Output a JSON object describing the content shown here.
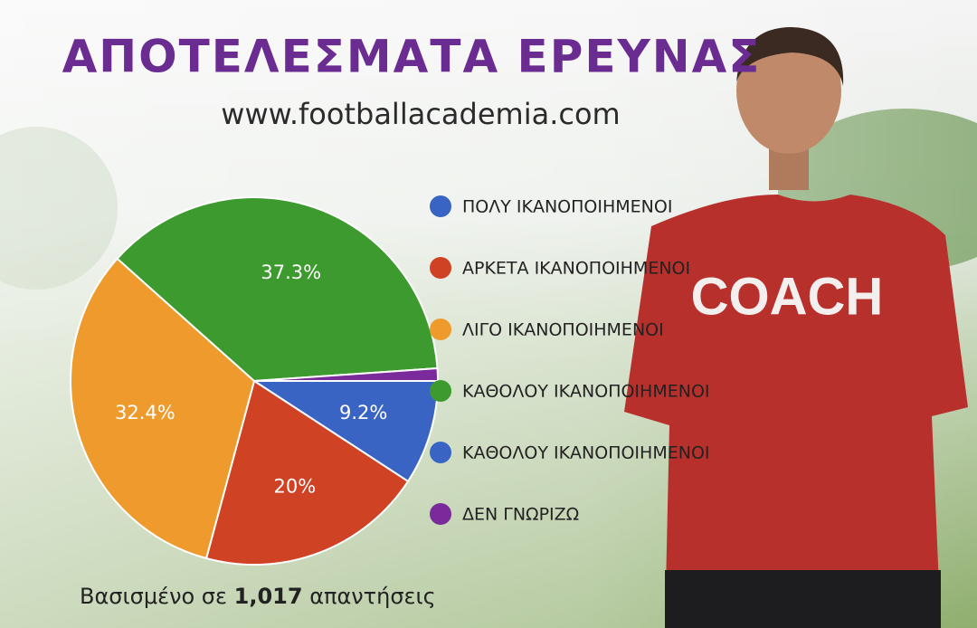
{
  "chart_data": {
    "type": "pie",
    "title": "ΑΠΟΤΕΛΕΣΜΑΤΑ ΕΡΕΥΝΑΣ",
    "subtitle": "www.footballacademia.com",
    "categories": [
      "ΠΟΛΥ ΙΚΑΝΟΠΟΙΗΜΕΝΟΙ",
      "ΑΡΚΕΤΑ ΙΚΑΝΟΠΟΙΗΜΕΝΟΙ",
      "ΛΙΓΟ ΙΚΑΝΟΠΟΙΗΜΕΝΟΙ",
      "ΚΑΘΟΛΟΥ ΙΚΑΝΟΠΟΙΗΜΕΝΟΙ",
      "ΚΑΘΟΛΟΥ ΙΚΑΝΟΠΟΙΗΜΕΝΟΙ",
      "ΔΕΝ ΓΝΩΡΙΖΩ"
    ],
    "values": [
      9.2,
      20,
      32.4,
      37.3,
      null,
      1.1
    ],
    "value_labels": [
      "9.2%",
      "20%",
      "32.4%",
      "37.3%",
      null,
      null
    ],
    "colors": [
      "#3a64c4",
      "#cf4224",
      "#ef9a2c",
      "#3d9a2e",
      "#3a64c4",
      "#7a2a9a"
    ],
    "footnote": {
      "prefix": "Βασισμένο σε",
      "count": "1,017",
      "suffix": "απαντήσεις"
    },
    "image_text": "COACH"
  }
}
